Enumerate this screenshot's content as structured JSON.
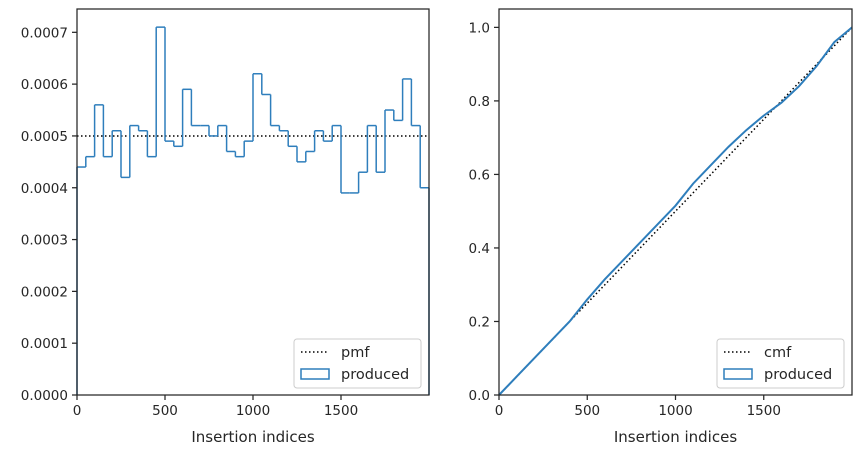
{
  "chart_data": [
    {
      "type": "step",
      "xlabel": "Insertion indices",
      "ylabel": "",
      "xlim": [
        0,
        2000
      ],
      "ylim": [
        0,
        0.000745
      ],
      "xticks": [
        0,
        500,
        1000,
        1500
      ],
      "xtick_labels": [
        "0",
        "500",
        "1000",
        "1500"
      ],
      "yticks": [
        0,
        0.0001,
        0.0002,
        0.0003,
        0.0004,
        0.0005,
        0.0006,
        0.0007
      ],
      "ytick_labels": [
        "0.0000",
        "0.0001",
        "0.0002",
        "0.0003",
        "0.0004",
        "0.0005",
        "0.0006",
        "0.0007"
      ],
      "legend": {
        "placement": "lower-right",
        "entries": [
          "pmf",
          "produced"
        ]
      },
      "series": [
        {
          "name": "pmf",
          "style": "dotted",
          "color": "#000000",
          "x": [
            0,
            2000
          ],
          "values": [
            0.0005,
            0.0005
          ]
        },
        {
          "name": "produced",
          "style": "step",
          "color": "#2e7ebc",
          "bin_width": 50,
          "bin_starts": [
            0,
            50,
            100,
            150,
            200,
            250,
            300,
            350,
            400,
            450,
            500,
            550,
            600,
            650,
            700,
            750,
            800,
            850,
            900,
            950,
            1000,
            1050,
            1100,
            1150,
            1200,
            1250,
            1300,
            1350,
            1400,
            1450,
            1500,
            1550,
            1600,
            1650,
            1700,
            1750,
            1800,
            1850,
            1900,
            1950
          ],
          "values": [
            0.00044,
            0.00046,
            0.00056,
            0.00046,
            0.00051,
            0.00042,
            0.00052,
            0.00051,
            0.00046,
            0.00071,
            0.00049,
            0.00048,
            0.00059,
            0.00052,
            0.00052,
            0.0005,
            0.00052,
            0.00047,
            0.00046,
            0.00049,
            0.00062,
            0.00058,
            0.00052,
            0.00051,
            0.00048,
            0.00045,
            0.00047,
            0.00051,
            0.00049,
            0.00052,
            0.00039,
            0.00039,
            0.00043,
            0.00052,
            0.00043,
            0.00055,
            0.00053,
            0.00061,
            0.00052,
            0.0004
          ]
        }
      ]
    },
    {
      "type": "line",
      "xlabel": "Insertion indices",
      "ylabel": "",
      "xlim": [
        0,
        2000
      ],
      "ylim": [
        0,
        1.05
      ],
      "xticks": [
        0,
        500,
        1000,
        1500
      ],
      "xtick_labels": [
        "0",
        "500",
        "1000",
        "1500"
      ],
      "yticks": [
        0,
        0.2,
        0.4,
        0.6,
        0.8,
        1.0
      ],
      "ytick_labels": [
        "0.0",
        "0.2",
        "0.4",
        "0.6",
        "0.8",
        "1.0"
      ],
      "legend": {
        "placement": "lower-right",
        "entries": [
          "cmf",
          "produced"
        ]
      },
      "series": [
        {
          "name": "cmf",
          "style": "dotted",
          "color": "#000000",
          "x": [
            0,
            2000
          ],
          "values": [
            0,
            1
          ]
        },
        {
          "name": "produced",
          "style": "line",
          "color": "#2e7ebc",
          "x": [
            0,
            100,
            200,
            300,
            400,
            500,
            600,
            700,
            800,
            900,
            1000,
            1100,
            1200,
            1300,
            1400,
            1500,
            1600,
            1700,
            1800,
            1900,
            2000
          ],
          "values": [
            0,
            0.05,
            0.1,
            0.15,
            0.2,
            0.26,
            0.315,
            0.365,
            0.415,
            0.465,
            0.515,
            0.575,
            0.625,
            0.675,
            0.72,
            0.76,
            0.795,
            0.84,
            0.895,
            0.96,
            1.0
          ]
        }
      ]
    }
  ]
}
